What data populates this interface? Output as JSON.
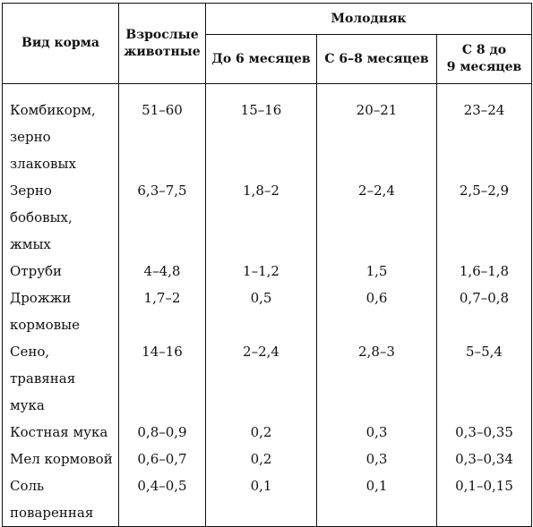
{
  "table": {
    "col_feed_type": "Вид корма",
    "col_adult": [
      "Взрослые",
      "животные"
    ],
    "col_young": "Молодняк",
    "young_subcols": [
      [
        "До 6 месяцев"
      ],
      [
        "С 6–8 месяцев"
      ],
      [
        "С 8 до",
        "9 месяцев"
      ]
    ],
    "rows": [
      {
        "feed": [
          "Комбикорм,",
          "зерно",
          "злаковых"
        ],
        "adult": "51–60",
        "m6": "15–16",
        "m6_8": "20–21",
        "m8_9": "23–24"
      },
      {
        "feed": [
          "Зерно бобовых,",
          "жмых"
        ],
        "adult": "6,3–7,5",
        "m6": "1,8–2",
        "m6_8": "2–2,4",
        "m8_9": "2,5–2,9"
      },
      {
        "feed": [
          "Отруби"
        ],
        "adult": "4–4,8",
        "m6": "1–1,2",
        "m6_8": "1,5",
        "m8_9": "1,6–1,8"
      },
      {
        "feed": [
          "Дрожжи",
          "кормовые"
        ],
        "adult": "1,7–2",
        "m6": "0,5",
        "m6_8": "0,6",
        "m8_9": "0,7–0,8"
      },
      {
        "feed": [
          "Сено, травяная",
          "мука"
        ],
        "adult": "14–16",
        "m6": "2–2,4",
        "m6_8": "2,8–3",
        "m8_9": "5–5,4"
      },
      {
        "feed": [
          "Костная мука"
        ],
        "adult": "0,8–0,9",
        "m6": "0,2",
        "m6_8": "0,3",
        "m8_9": "0,3–0,35"
      },
      {
        "feed": [
          "Мел кормовой"
        ],
        "adult": "0,6–0,7",
        "m6": "0,2",
        "m6_8": "0,3",
        "m8_9": "0,3–0,34"
      },
      {
        "feed": [
          "Соль",
          "поваренная"
        ],
        "adult": "0,4–0,5",
        "m6": "0,1",
        "m6_8": "0,1",
        "m8_9": "0,1–0,15"
      }
    ]
  }
}
